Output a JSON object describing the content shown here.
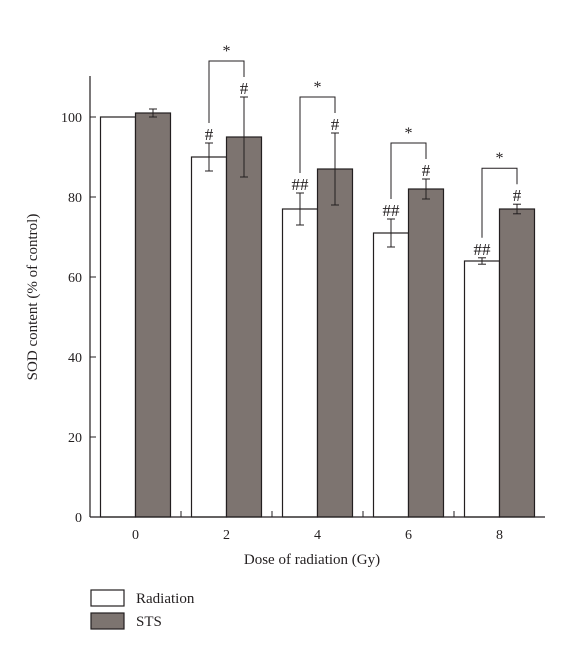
{
  "chart_data": {
    "type": "bar",
    "xlabel": "Dose of radiation (Gy)",
    "ylabel": "SOD content (% of control)",
    "ylim": [
      0,
      110
    ],
    "yticks": [
      0,
      20,
      40,
      60,
      80,
      100
    ],
    "categories": [
      "0",
      "2",
      "4",
      "6",
      "8"
    ],
    "series": [
      {
        "name": "Radiation",
        "color": "#ffffff",
        "values": [
          100,
          90,
          77,
          71,
          64
        ],
        "errors": [
          0,
          3.5,
          4,
          3.5,
          0.8
        ],
        "annotations": [
          "",
          "#",
          "##",
          "##",
          "##"
        ]
      },
      {
        "name": "STS",
        "color": "#7d7470",
        "values": [
          101,
          95,
          87,
          82,
          77
        ],
        "errors": [
          1,
          10,
          9,
          2.5,
          1.2
        ],
        "annotations": [
          "",
          "#",
          "#",
          "#",
          "#"
        ]
      }
    ],
    "significance": [
      "",
      "*",
      "*",
      "*",
      "*"
    ],
    "grid": false,
    "legend": "bottom-left"
  }
}
